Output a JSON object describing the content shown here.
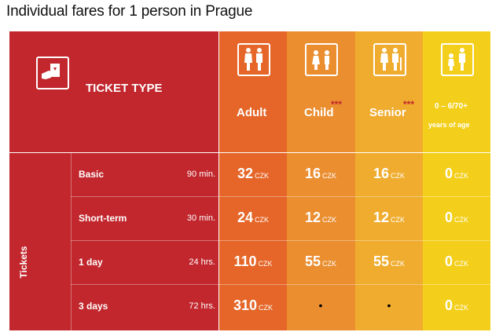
{
  "title": "Individual fares for 1 person in Prague",
  "header": {
    "ticket_type": "TICKET TYPE",
    "ticket_icon": "ticket-hand-icon",
    "columns": [
      {
        "label": "Adult",
        "icon": "adult-couple-icon",
        "stars": ""
      },
      {
        "label": "Child",
        "icon": "child-couple-icon",
        "stars": "***"
      },
      {
        "label": "Senior",
        "icon": "senior-couple-icon",
        "stars": "***"
      },
      {
        "label": "0 – 6/70+",
        "label2": "years of age",
        "icon": "child-and-elder-icon",
        "stars": ""
      }
    ]
  },
  "section_label": "Tickets",
  "currency": "CZK",
  "rows": [
    {
      "name": "Basic",
      "duration": "90 min.",
      "prices": [
        "32",
        "16",
        "16",
        "0"
      ]
    },
    {
      "name": "Short-term",
      "duration": "30 min.",
      "prices": [
        "24",
        "12",
        "12",
        "0"
      ]
    },
    {
      "name": "1 day",
      "duration": "24 hrs.",
      "prices": [
        "110",
        "55",
        "55",
        "0"
      ]
    },
    {
      "name": "3 days",
      "duration": "72 hrs.",
      "prices": [
        "310",
        "•",
        "•",
        "0"
      ]
    }
  ],
  "colors": {
    "red": "#c1272d",
    "adult": "#e56628",
    "child": "#ea8e30",
    "senior": "#efac2e",
    "free": "#f3cf1b"
  }
}
